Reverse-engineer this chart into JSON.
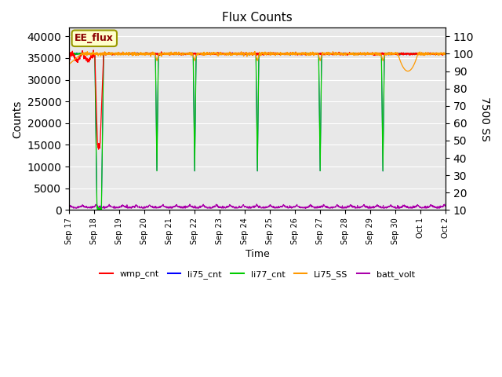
{
  "title": "Flux Counts",
  "xlabel": "Time",
  "ylabel_left": "Counts",
  "ylabel_right": "7500 SS",
  "annotation": "EE_flux",
  "left_ylim": [
    0,
    42000
  ],
  "right_ylim": [
    10,
    115
  ],
  "left_yticks": [
    0,
    5000,
    10000,
    15000,
    20000,
    25000,
    30000,
    35000,
    40000
  ],
  "right_yticks": [
    10,
    20,
    30,
    40,
    50,
    60,
    70,
    80,
    90,
    100,
    110
  ],
  "xtick_labels": [
    "Sep 17",
    "Sep 18",
    "Sep 19",
    "Sep 20",
    "Sep 21",
    "Sep 22",
    "Sep 23",
    "Sep 24",
    "Sep 25",
    "Sep 26",
    "Sep 27",
    "Sep 28",
    "Sep 29",
    "Sep 30",
    "Oct 1",
    "Oct 2"
  ],
  "colors": {
    "wmp_cnt": "#ff0000",
    "li75_cnt": "#0000ff",
    "li77_cnt": "#00cc00",
    "Li75_SS": "#ff9900",
    "batt_volt": "#aa00aa"
  },
  "plot_bg_color": "#e8e8e8"
}
